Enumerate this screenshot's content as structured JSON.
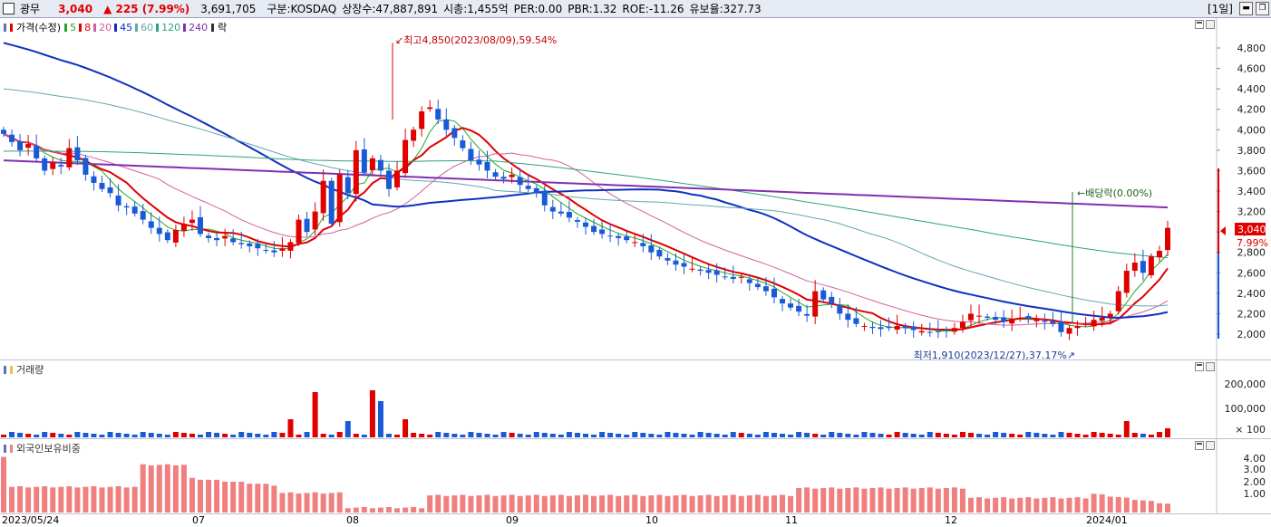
{
  "header": {
    "name": "광무",
    "price": "3,040",
    "change": "▲ 225 (7.99%)",
    "volume": "3,691,705",
    "market": "구분:KOSDAQ",
    "listed_shares": "상장수:47,887,891",
    "market_cap": "시총:1,455억",
    "per": "PER:0.00",
    "pbr": "PBR:1.32",
    "roe": "ROE:-11.26",
    "reserve_ratio": "유보율:327.73",
    "period_button": "[1일]"
  },
  "price_panel": {
    "legend_title": "가격(수정)",
    "ma_labels": [
      "5",
      "8",
      "20",
      "45",
      "60",
      "120",
      "240"
    ],
    "ma_colors": [
      "#22aa22",
      "#e00000",
      "#d060a0",
      "#1030c0",
      "#60a8b0",
      "#30a080",
      "#8030b0"
    ],
    "ex_label": "락",
    "high_annotation": "최고4,850(2023/08/09),59.54%",
    "low_annotation": "최저1,910(2023/12/27),37.17%",
    "dividend_annotation": "배당락(0.00%)",
    "current_price_tag": "3,040",
    "current_change_tag": "7.99%",
    "y_ticks": [
      "4,800",
      "4,600",
      "4,400",
      "4,200",
      "4,000",
      "3,800",
      "3,600",
      "3,400",
      "3,200",
      "3,000",
      "2,800",
      "2,600",
      "2,400",
      "2,200",
      "2,000"
    ]
  },
  "volume_panel": {
    "legend_title": "거래량",
    "y_ticks": [
      "200,000",
      "100,000",
      "× 100"
    ]
  },
  "foreign_panel": {
    "legend_title": "외국인보유비중",
    "y_ticks": [
      "4.00",
      "3.00",
      "2.00",
      "1.00"
    ]
  },
  "x_axis": {
    "labels": [
      "2023/05/24",
      "07",
      "08",
      "09",
      "10",
      "11",
      "12",
      "2024/01"
    ]
  },
  "chart_data": {
    "type": "candlestick",
    "price_range": [
      1910,
      4850
    ],
    "current_price": 3040,
    "closes": [
      3960,
      3880,
      3800,
      3860,
      3720,
      3600,
      3680,
      3640,
      3820,
      3700,
      3560,
      3480,
      3420,
      3380,
      3260,
      3240,
      3180,
      3120,
      3040,
      2980,
      2920,
      3020,
      3080,
      3120,
      2980,
      2940,
      2920,
      2960,
      2900,
      2880,
      2860,
      2840,
      2820,
      2800,
      2840,
      2900,
      3120,
      3000,
      3200,
      3500,
      3080,
      3560,
      3380,
      3800,
      3580,
      3720,
      3600,
      3420,
      3600,
      3900,
      4000,
      4180,
      4220,
      4100,
      4000,
      3920,
      3820,
      3700,
      3660,
      3600,
      3540,
      3520,
      3560,
      3460,
      3420,
      3380,
      3260,
      3200,
      3180,
      3140,
      3100,
      3050,
      3000,
      2980,
      2960,
      2940,
      2920,
      2900,
      2860,
      2800,
      2760,
      2720,
      2680,
      2660,
      2640,
      2620,
      2600,
      2580,
      2560,
      2540,
      2560,
      2500,
      2460,
      2420,
      2360,
      2300,
      2260,
      2220,
      2180,
      2420,
      2340,
      2300,
      2200,
      2140,
      2100,
      2080,
      2060,
      2050,
      2060,
      2080,
      2060,
      2040,
      2030,
      2020,
      2020,
      2040,
      2060,
      2120,
      2200,
      2180,
      2160,
      2140,
      2120,
      2150,
      2160,
      2150,
      2140,
      2120,
      2100,
      2020,
      2060,
      2080,
      2100,
      2140,
      2160,
      2200,
      2420,
      2620,
      2700,
      2600,
      2760,
      2815,
      3040
    ],
    "volume_bars_count": 143,
    "volume_highlights": {
      "2023/07": 170000,
      "2023/08/09": 230000,
      "2024/01": 60000
    },
    "foreign_ratio_range": [
      0.2,
      4.6
    ]
  }
}
